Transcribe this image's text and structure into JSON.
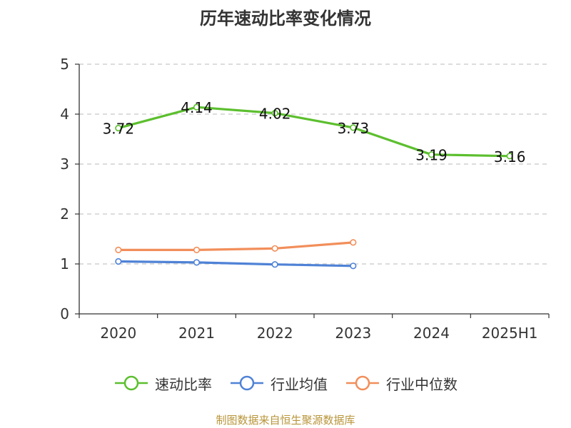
{
  "chart_data": {
    "type": "line",
    "title": "历年速动比率变化情况",
    "categories": [
      "2020",
      "2021",
      "2022",
      "2023",
      "2024",
      "2025H1"
    ],
    "ylim": [
      0,
      5
    ],
    "yticks": [
      "0",
      "1",
      "2",
      "3",
      "4",
      "5"
    ],
    "grid": true,
    "legend_position": "bottom",
    "series": [
      {
        "name": "速动比率",
        "color": "#5cbf2e",
        "values": [
          3.72,
          4.14,
          4.02,
          3.73,
          3.19,
          3.16
        ],
        "labels": [
          "3.72",
          "4.14",
          "4.02",
          "3.73",
          "3.19",
          "3.16"
        ]
      },
      {
        "name": "行业均值",
        "color": "#4f82d6",
        "values": [
          1.05,
          1.03,
          0.99,
          0.96,
          null,
          null
        ]
      },
      {
        "name": "行业中位数",
        "color": "#f28e5a",
        "values": [
          1.28,
          1.28,
          1.31,
          1.43,
          null,
          null
        ]
      }
    ]
  },
  "source_note": "制图数据来自恒生聚源数据库"
}
